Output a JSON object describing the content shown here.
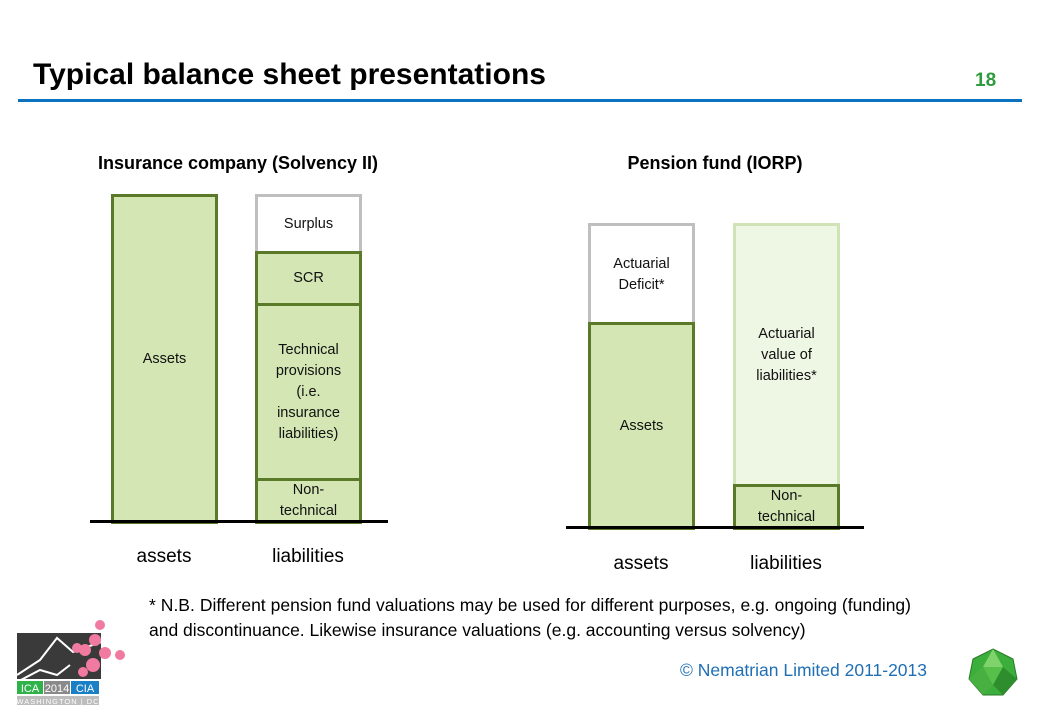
{
  "title": "Typical balance sheet presentations",
  "page_number": "18",
  "insurance": {
    "heading": "Insurance company (Solvency II)",
    "assets": "Assets",
    "surplus": "Surplus",
    "scr": "SCR",
    "technical": "Technical provisions (i.e. insurance liabilities)",
    "non_technical": "Non-technical",
    "x_assets": "assets",
    "x_liabilities": "liabilities"
  },
  "pension": {
    "heading": "Pension fund (IORP)",
    "deficit": "Actuarial Deficit*",
    "assets": "Assets",
    "actuarial": "Actuarial value of liabilities*",
    "non_technical": "Non-technical",
    "x_assets": "assets",
    "x_liabilities": "liabilities"
  },
  "footnote": "* N.B. Different pension fund valuations may be used for different purposes, e.g. ongoing (funding) and discontinuance. Likewise insurance valuations (e.g. accounting versus solvency)",
  "logo_text": {
    "ica": "ICA",
    "year": "2014",
    "cia": "CIA",
    "city": "WASHINGTON",
    "dc": "DC"
  },
  "copyright": "© Nematrian Limited 2011-2013",
  "colors": {
    "accent": "#0a72be",
    "green": "#d3e6b3",
    "green_border": "#5a7a2a"
  }
}
